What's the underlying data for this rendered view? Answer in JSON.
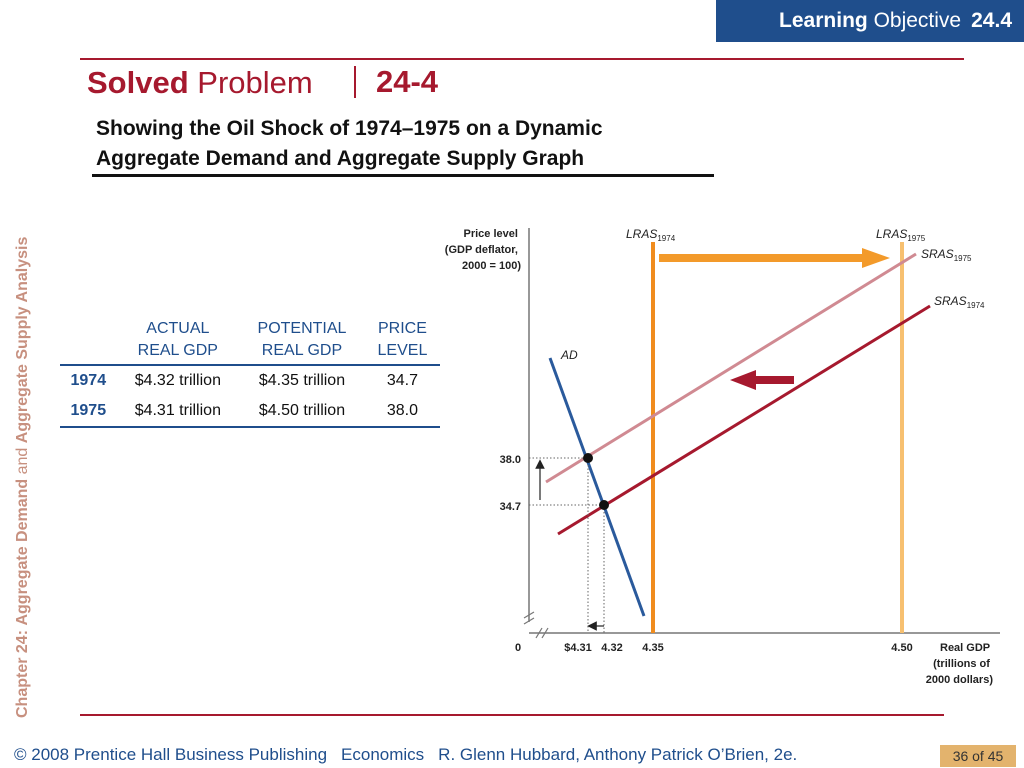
{
  "header": {
    "lo_bold": "Learning",
    "lo_word": "Objective",
    "lo_number": "24.4",
    "sp_bold": "Solved",
    "sp_word": "Problem",
    "sp_number": "24-4",
    "subtitle_line1": "Showing the Oil Shock of 1974–1975 on a Dynamic",
    "subtitle_line2": "Aggregate Demand and Aggregate Supply Graph"
  },
  "sidebar": {
    "chapter": "Chapter 24:",
    "part1": "Aggregate Demand",
    "and": "and",
    "part2": "Aggregate Supply Analysis"
  },
  "table": {
    "headers": [
      {
        "line1": "ACTUAL",
        "line2": "REAL GDP"
      },
      {
        "line1": "POTENTIAL",
        "line2": "REAL GDP"
      },
      {
        "line1": "PRICE",
        "line2": "LEVEL"
      }
    ],
    "rows": [
      {
        "year": "1974",
        "actual": "$4.32 trillion",
        "potential": "$4.35 trillion",
        "price": "34.7"
      },
      {
        "year": "1975",
        "actual": "$4.31 trillion",
        "potential": "$4.50 trillion",
        "price": "38.0"
      }
    ]
  },
  "chart_data": {
    "type": "line",
    "ylabel_lines": [
      "Price level",
      "(GDP deflator,",
      "2000 = 100)"
    ],
    "xlabel_lines": [
      "Real GDP",
      "(trillions of",
      "2000 dollars)"
    ],
    "origin_label": "0",
    "x_ticks": [
      "$4.31",
      "4.32",
      "4.35",
      "4.50"
    ],
    "y_ticks": [
      "38.0",
      "34.7"
    ],
    "curves": [
      {
        "name": "LRAS",
        "sub": "1974",
        "kind": "vertical",
        "x": 4.35,
        "color": "#f08c1e"
      },
      {
        "name": "LRAS",
        "sub": "1975",
        "kind": "vertical",
        "x": 4.5,
        "color": "#f7c070"
      },
      {
        "name": "SRAS",
        "sub": "1975",
        "kind": "upward",
        "color": "#d08a92"
      },
      {
        "name": "SRAS",
        "sub": "1974",
        "kind": "upward",
        "color": "#a6192e"
      },
      {
        "name": "AD",
        "sub": "",
        "kind": "downward",
        "color": "#2a5a9c"
      }
    ],
    "equilibria": [
      {
        "year": "1974",
        "x": 4.32,
        "y": 34.7
      },
      {
        "year": "1975",
        "x": 4.31,
        "y": 38.0
      }
    ]
  },
  "footer": {
    "copyright": "© 2008 Prentice Hall Business Publishing",
    "book": "Economics",
    "authors": "R. Glenn Hubbard, Anthony Patrick O’Brien, 2e.",
    "page": "36 of 45"
  }
}
